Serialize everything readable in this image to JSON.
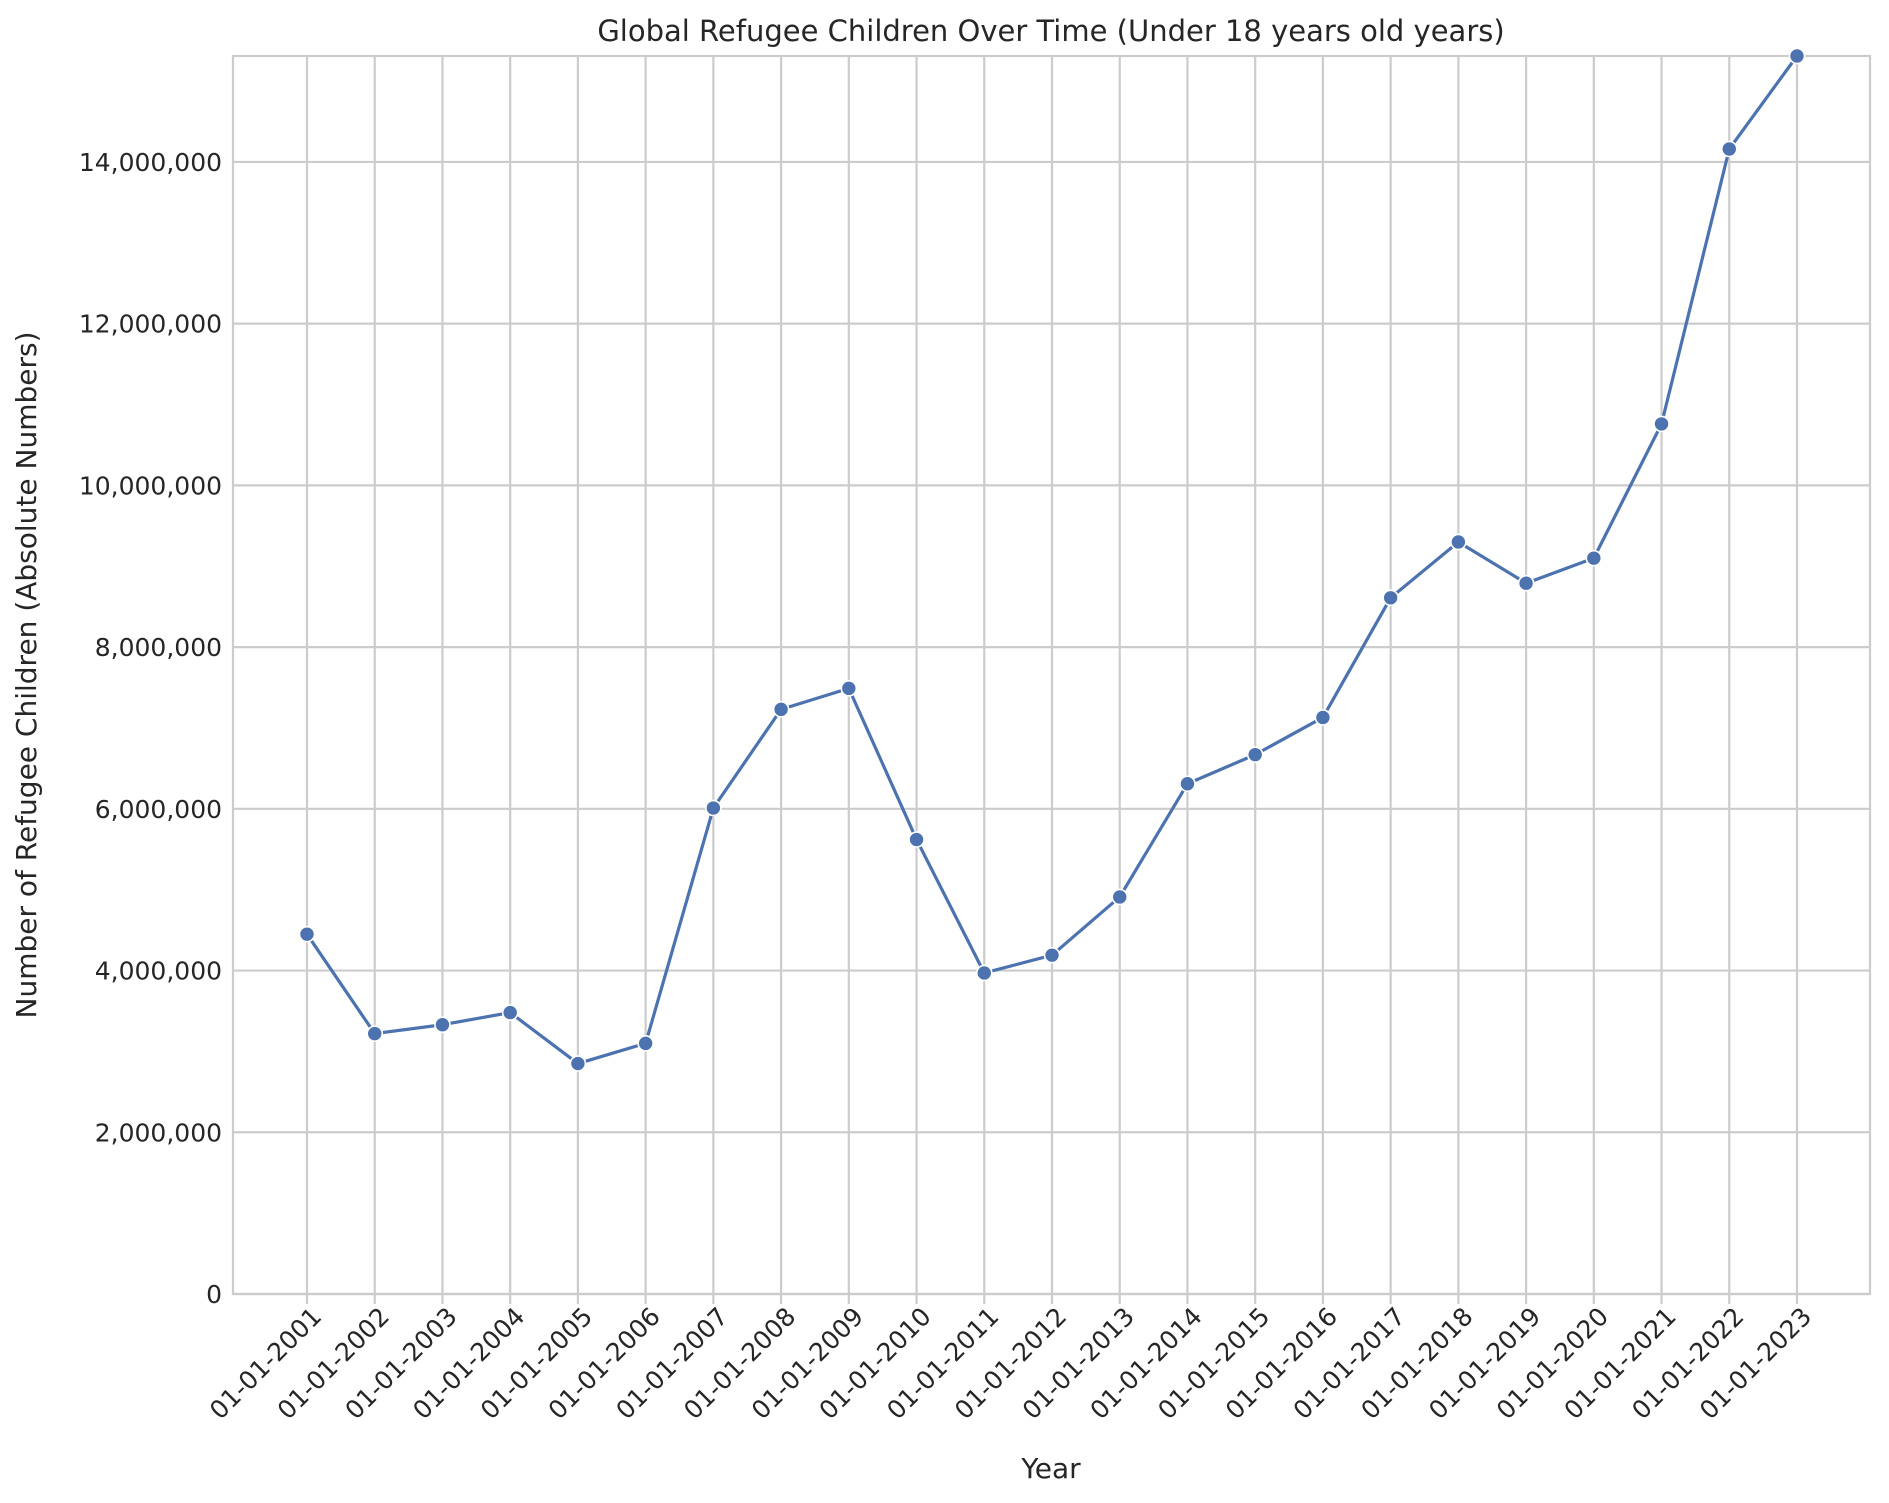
{
  "chart_data": {
    "type": "line",
    "title": "Global Refugee Children Over Time (Under 18 years old years)",
    "xlabel": "Year",
    "ylabel": "Number of Refugee Children (Absolute Numbers)",
    "categories": [
      "01-01-2001",
      "01-01-2002",
      "01-01-2003",
      "01-01-2004",
      "01-01-2005",
      "01-01-2006",
      "01-01-2007",
      "01-01-2008",
      "01-01-2009",
      "01-01-2010",
      "01-01-2011",
      "01-01-2012",
      "01-01-2013",
      "01-01-2014",
      "01-01-2015",
      "01-01-2016",
      "01-01-2017",
      "01-01-2018",
      "01-01-2019",
      "01-01-2020",
      "01-01-2021",
      "01-01-2022",
      "01-01-2023"
    ],
    "series": [
      {
        "values": [
          4450000,
          3220000,
          3330000,
          3480000,
          2850000,
          3100000,
          6010000,
          7230000,
          7490000,
          5620000,
          3970000,
          4190000,
          4910000,
          6310000,
          6670000,
          7130000,
          8610000,
          9300000,
          8790000,
          9100000,
          10760000,
          14160000,
          15310000
        ],
        "color": "#4c72b0"
      }
    ],
    "ylim": [
      0,
      15310000
    ],
    "yticks": [
      0,
      2000000,
      4000000,
      6000000,
      8000000,
      10000000,
      12000000,
      14000000
    ],
    "ytick_labels": [
      "0",
      "2,000,000",
      "4,000,000",
      "6,000,000",
      "8,000,000",
      "10,000,000",
      "12,000,000",
      "14,000,000"
    ],
    "grid": true,
    "marker": "circle"
  }
}
